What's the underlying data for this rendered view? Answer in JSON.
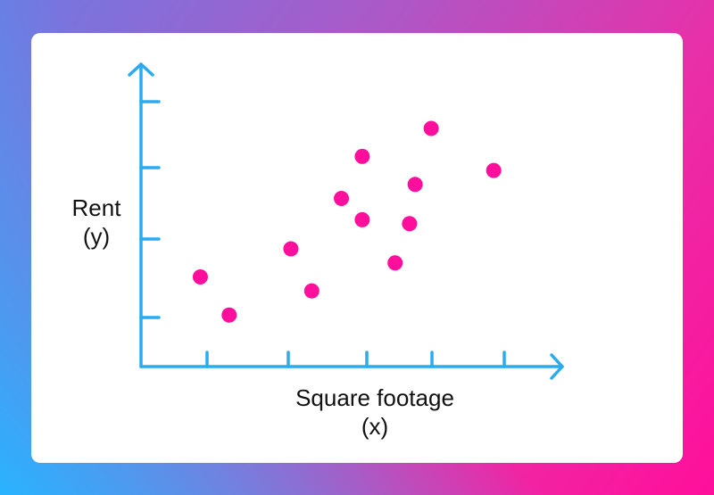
{
  "chart_data": {
    "type": "scatter",
    "title": "",
    "xlabel": "Square footage",
    "xlabel_var": "(x)",
    "ylabel": "Rent",
    "ylabel_var": "(y)",
    "x_tick_count": 6,
    "y_tick_count": 4,
    "points": [
      {
        "x": 0.74,
        "y": 1.6
      },
      {
        "x": 1.1,
        "y": 0.92
      },
      {
        "x": 1.87,
        "y": 2.1
      },
      {
        "x": 2.13,
        "y": 1.35
      },
      {
        "x": 2.5,
        "y": 3.0
      },
      {
        "x": 2.76,
        "y": 3.75
      },
      {
        "x": 2.76,
        "y": 2.62
      },
      {
        "x": 3.17,
        "y": 1.85
      },
      {
        "x": 3.35,
        "y": 2.55
      },
      {
        "x": 3.42,
        "y": 3.25
      },
      {
        "x": 3.62,
        "y": 4.25
      },
      {
        "x": 4.4,
        "y": 3.5
      }
    ],
    "xlim": [
      0,
      5.2
    ],
    "ylim": [
      0,
      5.3
    ],
    "grid": false
  },
  "colors": {
    "axis": "#29abf0",
    "point": "#ff0f9b",
    "card": "#ffffff"
  }
}
